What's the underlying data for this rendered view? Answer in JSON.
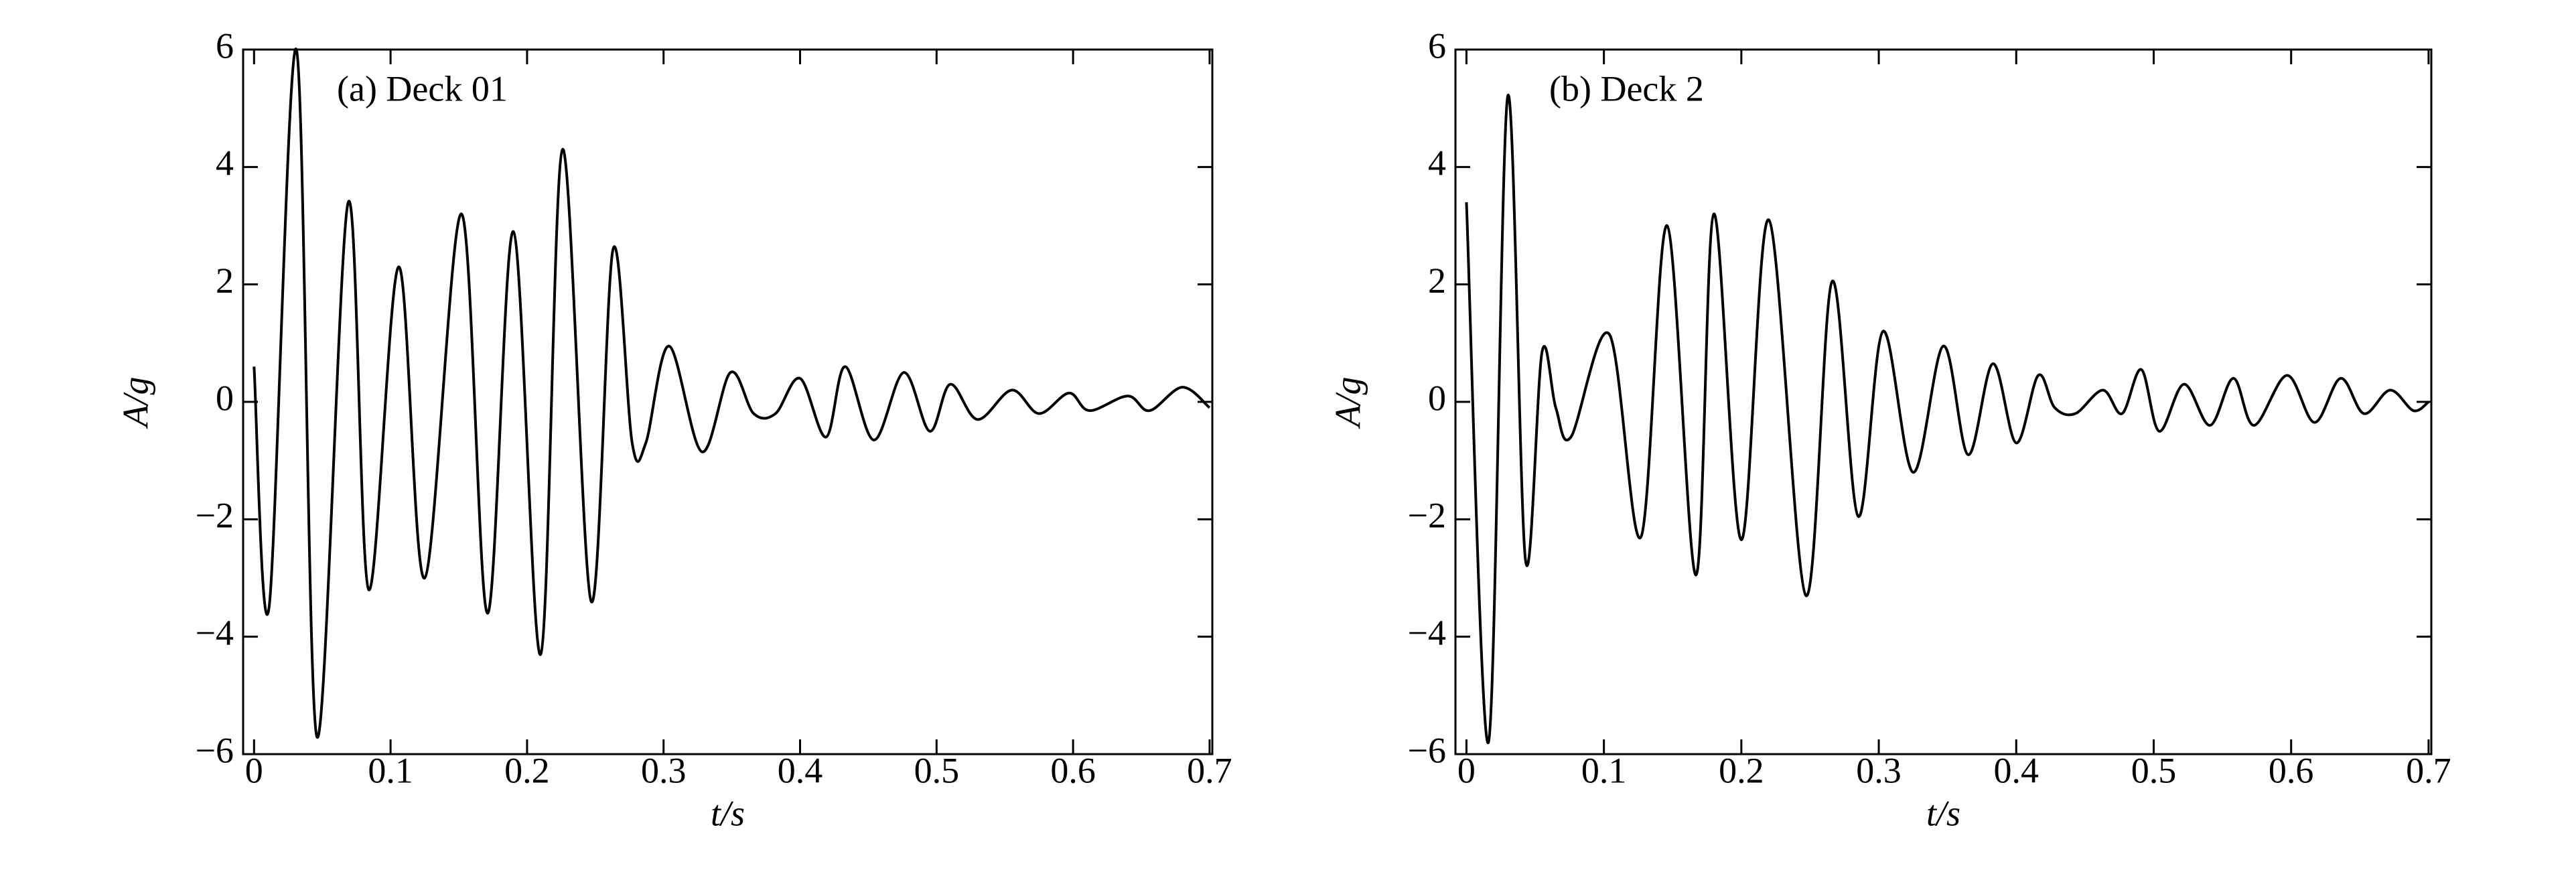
{
  "chart_data": [
    {
      "type": "line",
      "annotation": "(a) Deck 01",
      "xlabel": "t/s",
      "ylabel": "A/g",
      "color": "#000000",
      "xlim": [
        -0.008,
        0.702
      ],
      "ylim": [
        -6,
        6
      ],
      "xticks": [
        0,
        0.1,
        0.2,
        0.3,
        0.4,
        0.5,
        0.6,
        0.7
      ],
      "yticks": [
        {
          "value": -6,
          "label": "−6"
        },
        {
          "value": -4,
          "label": "−4"
        },
        {
          "value": -2,
          "label": "−2"
        },
        0,
        2,
        4,
        6
      ],
      "x": [
        0,
        0.011,
        0.031,
        0.046,
        0.069,
        0.084,
        0.106,
        0.125,
        0.152,
        0.171,
        0.19,
        0.21,
        0.226,
        0.247,
        0.263,
        0.277,
        0.287,
        0.304,
        0.328,
        0.349,
        0.366,
        0.382,
        0.4,
        0.419,
        0.433,
        0.454,
        0.476,
        0.495,
        0.51,
        0.53,
        0.555,
        0.575,
        0.597,
        0.612,
        0.64,
        0.656,
        0.68,
        0.7
      ],
      "values": [
        0.6,
        -3.5,
        6,
        -5.7,
        3.4,
        -3.2,
        2.3,
        -3.0,
        3.2,
        -3.6,
        2.9,
        -4.3,
        4.3,
        -3.4,
        2.6,
        -0.7,
        -0.7,
        0.95,
        -0.85,
        0.5,
        -0.2,
        -0.2,
        0.4,
        -0.6,
        0.6,
        -0.65,
        0.5,
        -0.5,
        0.3,
        -0.3,
        0.2,
        -0.2,
        0.15,
        -0.15,
        0.1,
        -0.15,
        0.25,
        -0.1
      ]
    },
    {
      "type": "line",
      "annotation": "(b) Deck 2",
      "xlabel": "t/s",
      "ylabel": "A/g",
      "color": "#000000",
      "xlim": [
        -0.008,
        0.702
      ],
      "ylim": [
        -6,
        6
      ],
      "xticks": [
        0,
        0.1,
        0.2,
        0.3,
        0.4,
        0.5,
        0.6,
        0.7
      ],
      "yticks": [
        {
          "value": -6,
          "label": "−6"
        },
        {
          "value": -4,
          "label": "−4"
        },
        {
          "value": -2,
          "label": "−2"
        },
        0,
        2,
        4,
        6
      ],
      "x": [
        0,
        0.016,
        0.03,
        0.043,
        0.055,
        0.065,
        0.076,
        0.104,
        0.127,
        0.146,
        0.167,
        0.18,
        0.2,
        0.22,
        0.247,
        0.266,
        0.285,
        0.303,
        0.325,
        0.347,
        0.365,
        0.383,
        0.4,
        0.416,
        0.428,
        0.443,
        0.463,
        0.477,
        0.491,
        0.504,
        0.522,
        0.541,
        0.558,
        0.573,
        0.597,
        0.617,
        0.636,
        0.653,
        0.672,
        0.689,
        0.7
      ],
      "values": [
        3.4,
        -5.8,
        5.2,
        -2.7,
        0.85,
        -0.1,
        -0.6,
        1.15,
        -2.3,
        3.0,
        -2.95,
        3.2,
        -2.35,
        3.1,
        -3.3,
        2.05,
        -1.95,
        1.2,
        -1.2,
        0.95,
        -0.9,
        0.65,
        -0.7,
        0.45,
        -0.1,
        -0.2,
        0.2,
        -0.2,
        0.55,
        -0.5,
        0.3,
        -0.4,
        0.4,
        -0.4,
        0.45,
        -0.35,
        0.4,
        -0.2,
        0.2,
        -0.15,
        0
      ]
    }
  ]
}
